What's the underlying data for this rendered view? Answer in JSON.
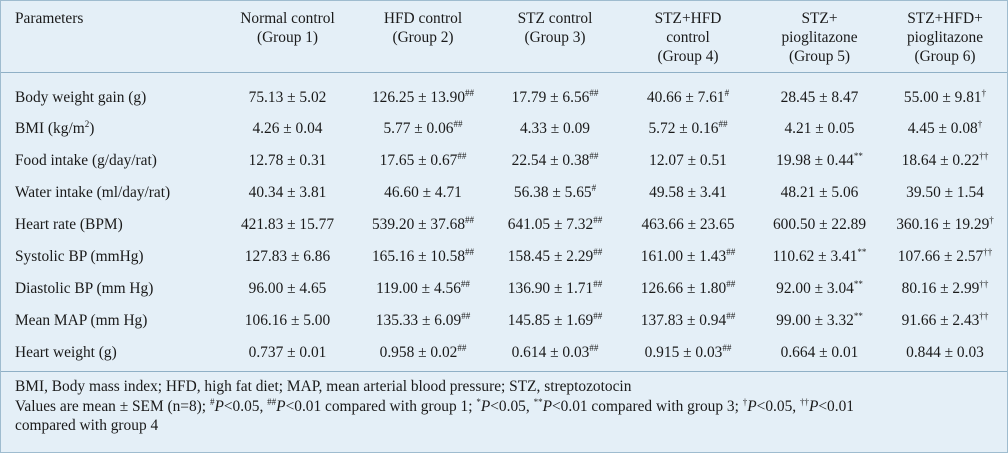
{
  "table": {
    "headers": {
      "parameters": "Parameters",
      "groups": [
        {
          "line1": "Normal control",
          "line2": "(Group 1)",
          "line3": ""
        },
        {
          "line1": "HFD control",
          "line2": "(Group 2)",
          "line3": ""
        },
        {
          "line1": "STZ control",
          "line2": "(Group 3)",
          "line3": ""
        },
        {
          "line1": "STZ+HFD",
          "line2": "control",
          "line3": "(Group 4)"
        },
        {
          "line1": "STZ+",
          "line2": "pioglitazone",
          "line3": "(Group 5)"
        },
        {
          "line1": "STZ+HFD+",
          "line2": "pioglitazone",
          "line3": "(Group 6)"
        }
      ]
    },
    "rows": [
      {
        "param": "Body weight gain (g)",
        "param_sup": "",
        "param_after": "",
        "cells": [
          {
            "v": "75.13 ± 5.02",
            "s": ""
          },
          {
            "v": "126.25 ± 13.90",
            "s": "##"
          },
          {
            "v": "17.79 ± 6.56",
            "s": "##"
          },
          {
            "v": "40.66 ± 7.61",
            "s": "#"
          },
          {
            "v": "28.45 ± 8.47",
            "s": ""
          },
          {
            "v": "55.00 ± 9.81",
            "s": "†"
          }
        ]
      },
      {
        "param": "BMI (kg/m",
        "param_sup": "2",
        "param_after": ")",
        "cells": [
          {
            "v": "4.26 ± 0.04",
            "s": ""
          },
          {
            "v": "5.77 ± 0.06",
            "s": "##"
          },
          {
            "v": "4.33 ± 0.09",
            "s": ""
          },
          {
            "v": "5.72 ± 0.16",
            "s": "##"
          },
          {
            "v": "4.21 ± 0.05",
            "s": ""
          },
          {
            "v": "4.45 ± 0.08",
            "s": "†"
          }
        ]
      },
      {
        "param": "Food intake (g/day/rat)",
        "param_sup": "",
        "param_after": "",
        "cells": [
          {
            "v": "12.78 ± 0.31",
            "s": ""
          },
          {
            "v": "17.65 ± 0.67",
            "s": "##"
          },
          {
            "v": "22.54 ± 0.38",
            "s": "##"
          },
          {
            "v": "12.07 ± 0.51",
            "s": ""
          },
          {
            "v": "19.98 ± 0.44",
            "s": "**"
          },
          {
            "v": "18.64 ± 0.22",
            "s": "††"
          }
        ]
      },
      {
        "param": "Water intake (ml/day/rat)",
        "param_sup": "",
        "param_after": "",
        "cells": [
          {
            "v": "40.34 ± 3.81",
            "s": ""
          },
          {
            "v": "46.60 ± 4.71",
            "s": ""
          },
          {
            "v": "56.38 ± 5.65",
            "s": "#"
          },
          {
            "v": "49.58 ± 3.41",
            "s": ""
          },
          {
            "v": "48.21 ± 5.06",
            "s": ""
          },
          {
            "v": "39.50 ± 1.54",
            "s": ""
          }
        ]
      },
      {
        "param": "Heart rate (BPM)",
        "param_sup": "",
        "param_after": "",
        "cells": [
          {
            "v": "421.83 ± 15.77",
            "s": ""
          },
          {
            "v": "539.20 ± 37.68",
            "s": "##"
          },
          {
            "v": "641.05 ± 7.32",
            "s": "##"
          },
          {
            "v": "463.66 ± 23.65",
            "s": ""
          },
          {
            "v": "600.50 ± 22.89",
            "s": ""
          },
          {
            "v": "360.16 ± 19.29",
            "s": "†"
          }
        ]
      },
      {
        "param": "Systolic BP (mmHg)",
        "param_sup": "",
        "param_after": "",
        "cells": [
          {
            "v": "127.83 ± 6.86",
            "s": ""
          },
          {
            "v": "165.16 ± 10.58",
            "s": "##"
          },
          {
            "v": "158.45 ± 2.29",
            "s": "##"
          },
          {
            "v": "161.00 ± 1.43",
            "s": "##"
          },
          {
            "v": "110.62 ± 3.41",
            "s": "**"
          },
          {
            "v": "107.66 ± 2.57",
            "s": "††"
          }
        ]
      },
      {
        "param": "Diastolic BP (mm Hg)",
        "param_sup": "",
        "param_after": "",
        "cells": [
          {
            "v": "96.00 ± 4.65",
            "s": ""
          },
          {
            "v": "119.00 ± 4.56",
            "s": "##"
          },
          {
            "v": "136.90 ± 1.71",
            "s": "##"
          },
          {
            "v": "126.66 ± 1.80",
            "s": "##"
          },
          {
            "v": "92.00 ± 3.04",
            "s": "**"
          },
          {
            "v": "80.16 ± 2.99",
            "s": "††"
          }
        ]
      },
      {
        "param": "Mean MAP (mm Hg)",
        "param_sup": "",
        "param_after": "",
        "cells": [
          {
            "v": "106.16 ± 5.00",
            "s": ""
          },
          {
            "v": "135.33 ± 6.09",
            "s": "##"
          },
          {
            "v": "145.85 ± 1.69",
            "s": "##"
          },
          {
            "v": "137.83 ± 0.94",
            "s": "##"
          },
          {
            "v": "99.00 ± 3.32",
            "s": "**"
          },
          {
            "v": "91.66 ± 2.43",
            "s": "††"
          }
        ]
      },
      {
        "param": "Heart weight (g)",
        "param_sup": "",
        "param_after": "",
        "cells": [
          {
            "v": "0.737 ± 0.01",
            "s": ""
          },
          {
            "v": "0.958 ± 0.02",
            "s": "##"
          },
          {
            "v": "0.614 ± 0.03",
            "s": "##"
          },
          {
            "v": "0.915 ± 0.03",
            "s": "##"
          },
          {
            "v": "0.664 ± 0.01",
            "s": ""
          },
          {
            "v": "0.844 ± 0.03",
            "s": ""
          }
        ]
      }
    ]
  },
  "footnotes": {
    "abbreviations": "BMI, Body mass index; HFD, high fat diet; MAP, mean arterial blood pressure; STZ, streptozotocin",
    "stats_parts": [
      {
        "t": "Values are mean ± SEM (n=8); ",
        "k": "text"
      },
      {
        "t": "#",
        "k": "sup"
      },
      {
        "t": "P",
        "k": "italic"
      },
      {
        "t": "<0.05, ",
        "k": "text"
      },
      {
        "t": "##",
        "k": "sup"
      },
      {
        "t": "P",
        "k": "italic"
      },
      {
        "t": "<0.01 compared with group 1; ",
        "k": "text"
      },
      {
        "t": "*",
        "k": "sup"
      },
      {
        "t": "P",
        "k": "italic"
      },
      {
        "t": "<0.05, ",
        "k": "text"
      },
      {
        "t": "**",
        "k": "sup"
      },
      {
        "t": "P",
        "k": "italic"
      },
      {
        "t": "<0.01 compared with group 3; ",
        "k": "text"
      },
      {
        "t": "†",
        "k": "sup"
      },
      {
        "t": "P",
        "k": "italic"
      },
      {
        "t": "<0.05, ",
        "k": "text"
      },
      {
        "t": "††",
        "k": "sup"
      },
      {
        "t": "P",
        "k": "italic"
      },
      {
        "t": "<0.01",
        "k": "text"
      }
    ],
    "stats_line2": "compared with group 4"
  },
  "colors": {
    "background": "#e4eff7",
    "rule": "#8fb0c6",
    "border": "#9fbccf"
  }
}
